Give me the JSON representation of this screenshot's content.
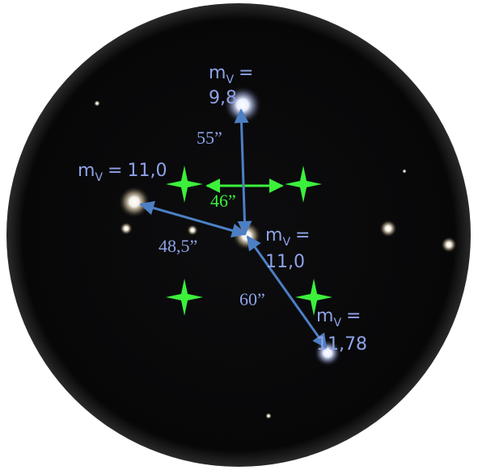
{
  "stars": [
    {
      "symbol": "m",
      "subscript": "V",
      "relation": "=",
      "magnitude": "9,8"
    },
    {
      "symbol": "m",
      "subscript": "V",
      "relation": "=",
      "magnitude": "11,0"
    },
    {
      "symbol": "m",
      "subscript": "V",
      "relation": "=",
      "magnitude": "11,0"
    },
    {
      "symbol": "m",
      "subscript": "V",
      "relation": "=",
      "magnitude": "11,78"
    }
  ],
  "distances": [
    "55”",
    "46”",
    "48,5”",
    "60”"
  ]
}
